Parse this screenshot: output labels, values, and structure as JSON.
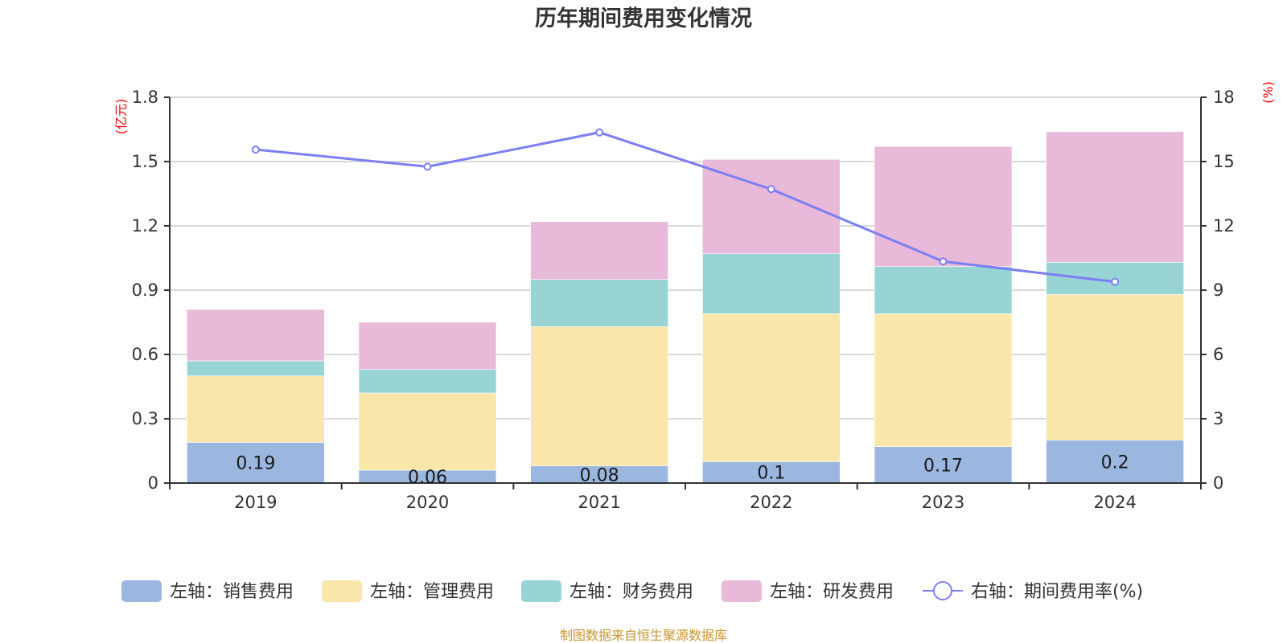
{
  "chart_data": {
    "type": "bar",
    "stacked": true,
    "title": "历年期间费用变化情况",
    "categories": [
      "2019",
      "2020",
      "2021",
      "2022",
      "2023",
      "2024"
    ],
    "left_axis": {
      "unit_label": "(亿元)",
      "ylim": [
        0,
        1.8
      ],
      "ticks": [
        "0",
        "0.3",
        "0.6",
        "0.9",
        "1.2",
        "1.5",
        "1.8"
      ],
      "tick_values": [
        0,
        0.3,
        0.6,
        0.9,
        1.2,
        1.5,
        1.8
      ]
    },
    "right_axis": {
      "unit_label": "(%)",
      "ylim": [
        0,
        18
      ],
      "ticks": [
        "0",
        "3",
        "6",
        "9",
        "12",
        "15",
        "18"
      ],
      "tick_values": [
        0,
        3,
        6,
        9,
        12,
        15,
        18
      ]
    },
    "grid": true,
    "legend_position": "bottom",
    "series": [
      {
        "name": "左轴：销售费用",
        "type": "bar",
        "axis": "left",
        "color": "#9bb7e0",
        "values": [
          0.19,
          0.06,
          0.08,
          0.1,
          0.17,
          0.2
        ],
        "labels": [
          "0.19",
          "0.06",
          "0.08",
          "0.1",
          "0.17",
          "0.2"
        ]
      },
      {
        "name": "左轴：管理费用",
        "type": "bar",
        "axis": "left",
        "color": "#f8e7a9",
        "values": [
          0.31,
          0.36,
          0.65,
          0.69,
          0.62,
          0.68
        ]
      },
      {
        "name": "左轴：财务费用",
        "type": "bar",
        "axis": "left",
        "color": "#98d4d4",
        "values": [
          0.07,
          0.11,
          0.22,
          0.28,
          0.22,
          0.15
        ]
      },
      {
        "name": "左轴：研发费用",
        "type": "bar",
        "axis": "left",
        "color": "#e8b9d8",
        "values": [
          0.24,
          0.22,
          0.27,
          0.44,
          0.56,
          0.61
        ]
      },
      {
        "name": "右轴：期间费用率(%)",
        "type": "line",
        "axis": "right",
        "color": "#7b7ff5",
        "values": [
          15.56,
          14.76,
          16.36,
          13.71,
          10.34,
          9.39
        ]
      }
    ]
  },
  "footer": "制图数据来自恒生聚源数据库"
}
